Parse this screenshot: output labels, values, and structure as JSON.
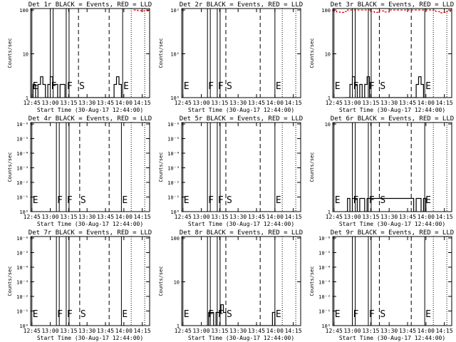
{
  "chart_data": [
    {
      "type": "line",
      "title": "Det 1r BLACK = Events, RED = LLD",
      "xlabel": "Start Time (30-Aug-17 12:44:00)",
      "ylabel": "Counts/sec",
      "x_ticks": [
        "12:45",
        "13:00",
        "13:15",
        "13:30",
        "13:45",
        "14:00",
        "14:15"
      ],
      "y_scale": "log",
      "y_ticks": [
        "1",
        "10",
        "100"
      ],
      "markers": [
        {
          "label": "E",
          "time": "12:45"
        },
        {
          "label": "F",
          "time": "13:00"
        },
        {
          "label": "F",
          "time": "13:13"
        },
        {
          "label": "S",
          "time": "13:23"
        },
        {
          "label": "E",
          "time": "13:59"
        }
      ],
      "series": [
        {
          "color": "#000000",
          "x": [
            "12:44",
            "12:46",
            "12:48",
            "12:50",
            "12:52",
            "12:54",
            "12:56",
            "12:58",
            "13:00",
            "13:02",
            "13:04",
            "13:06",
            "13:08",
            "13:10",
            "13:12",
            "13:14",
            "13:16",
            "13:18",
            "13:20",
            "13:22",
            "13:24",
            "13:26",
            "13:28",
            "13:30",
            "13:32",
            "13:34",
            "13:36",
            "13:38",
            "13:40",
            "13:42",
            "13:44",
            "13:46",
            "13:48",
            "13:50",
            "13:52",
            "13:54",
            "13:56",
            "13:58",
            "14:00"
          ],
          "y": [
            0,
            2,
            1,
            2,
            3,
            2,
            1,
            2,
            3,
            2,
            2,
            1,
            2,
            2,
            1,
            0,
            0,
            0,
            0,
            0,
            0,
            0,
            0,
            0,
            0,
            0,
            0,
            0,
            0,
            0,
            0,
            0,
            0,
            0,
            2,
            3,
            2,
            1,
            0
          ]
        },
        {
          "color": "#dd0000",
          "x": [
            "14:08",
            "14:11",
            "14:14",
            "14:17",
            "14:20"
          ],
          "y": [
            100,
            97,
            95,
            96,
            100
          ]
        }
      ]
    },
    {
      "type": "line",
      "title": "Det 2r BLACK = Events, RED = LLD",
      "xlabel": "Start Time (30-Aug-17 12:44:00)",
      "ylabel": "Counts/sec",
      "x_ticks": [
        "12:45",
        "13:00",
        "13:15",
        "13:30",
        "13:45",
        "14:00",
        "14:15"
      ],
      "y_scale": "log",
      "y_ticks": [
        "10⁰",
        "10¹",
        "10²"
      ],
      "markers": [
        {
          "label": "E",
          "time": "12:45"
        },
        {
          "label": "F",
          "time": "13:05"
        },
        {
          "label": "F",
          "time": "13:13"
        },
        {
          "label": "S",
          "time": "13:20"
        },
        {
          "label": "E",
          "time": "14:00"
        }
      ],
      "series": []
    },
    {
      "type": "line",
      "title": "Det 3r BLACK = Events, RED = LLD",
      "xlabel": "Start Time (30-Aug-17 12:44:00)",
      "ylabel": "Counts/sec",
      "x_ticks": [
        "12:45",
        "13:00",
        "13:15",
        "13:30",
        "13:45",
        "14:00",
        "14:15"
      ],
      "y_scale": "log",
      "y_ticks": [
        "1",
        "10",
        "100"
      ],
      "markers": [
        {
          "label": "E",
          "time": "12:45"
        },
        {
          "label": "F",
          "time": "13:00"
        },
        {
          "label": "F",
          "time": "13:13"
        },
        {
          "label": "S",
          "time": "13:22"
        },
        {
          "label": "E",
          "time": "13:59"
        }
      ],
      "series": [
        {
          "color": "#000000",
          "x": [
            "12:54",
            "12:56",
            "12:58",
            "13:00",
            "13:02",
            "13:04",
            "13:06",
            "13:08",
            "13:10",
            "13:12",
            "13:14",
            "13:50",
            "13:52",
            "13:54",
            "13:56",
            "13:58",
            "14:00"
          ],
          "y": [
            0,
            1,
            2,
            3,
            2,
            1,
            2,
            1,
            2,
            3,
            0,
            0,
            2,
            3,
            2,
            1,
            0
          ]
        },
        {
          "color": "#dd0000",
          "x": [
            "12:44",
            "12:47",
            "12:50",
            "12:53",
            "12:56",
            "13:12",
            "13:15",
            "13:18",
            "13:22",
            "13:26",
            "13:30",
            "14:05",
            "14:08",
            "14:11",
            "14:14",
            "14:17",
            "14:20"
          ],
          "y": [
            95,
            90,
            88,
            92,
            100,
            100,
            92,
            88,
            95,
            90,
            100,
            100,
            92,
            86,
            88,
            93,
            100
          ]
        }
      ]
    },
    {
      "type": "line",
      "title": "Det 4r BLACK = Events, RED = LLD",
      "xlabel": "Start Time (30-Aug-17 12:44:00)",
      "ylabel": "Counts/sec",
      "x_ticks": [
        "12:45",
        "13:00",
        "13:15",
        "13:30",
        "13:45",
        "14:00",
        "14:15"
      ],
      "y_scale": "log",
      "y_ticks": [
        "10⁰",
        "10⁻¹",
        "10⁻²",
        "10⁻³",
        "10⁻⁴",
        "10⁻⁵",
        "10⁻⁶"
      ],
      "markers": [
        {
          "label": "E",
          "time": "12:45"
        },
        {
          "label": "F",
          "time": "13:05"
        },
        {
          "label": "F",
          "time": "13:13"
        },
        {
          "label": "S",
          "time": "13:24"
        },
        {
          "label": "E",
          "time": "13:58"
        }
      ],
      "series": []
    },
    {
      "type": "line",
      "title": "Det 5r BLACK = Events, RED = LLD",
      "xlabel": "Start Time (30-Aug-17 12:44:00)",
      "ylabel": "Counts/sec",
      "x_ticks": [
        "12:45",
        "13:00",
        "13:15",
        "13:30",
        "13:45",
        "14:00",
        "14:15"
      ],
      "y_scale": "log",
      "y_ticks": [
        "10⁰",
        "10⁻¹",
        "10⁻²",
        "10⁻³",
        "10⁻⁴",
        "10⁻⁵",
        "10⁻⁶"
      ],
      "markers": [
        {
          "label": "E",
          "time": "12:45"
        },
        {
          "label": "F",
          "time": "13:05"
        },
        {
          "label": "F",
          "time": "13:13"
        },
        {
          "label": "S",
          "time": "13:20"
        },
        {
          "label": "E",
          "time": "14:00"
        }
      ],
      "series": []
    },
    {
      "type": "line",
      "title": "Det 6r BLACK = Events, RED = LLD",
      "xlabel": "Start Time (30-Aug-17 12:44:00)",
      "ylabel": "Counts/sec",
      "x_ticks": [
        "12:45",
        "13:00",
        "13:15",
        "13:30",
        "13:45",
        "14:00",
        "14:15"
      ],
      "y_scale": "log",
      "y_ticks": [
        "1",
        "10"
      ],
      "markers": [
        {
          "label": "E",
          "time": "12:45"
        },
        {
          "label": "F",
          "time": "13:00"
        },
        {
          "label": "F",
          "time": "13:13"
        },
        {
          "label": "S",
          "time": "13:22"
        },
        {
          "label": "E",
          "time": "13:59"
        }
      ],
      "series": [
        {
          "color": "#000000",
          "x": [
            "12:54",
            "12:56",
            "12:58",
            "13:00",
            "13:02",
            "13:04",
            "13:06",
            "13:08",
            "13:10",
            "13:12",
            "13:50",
            "13:52",
            "13:54",
            "13:56",
            "13:58",
            "14:00"
          ],
          "y": [
            0,
            2,
            1,
            2,
            2,
            1,
            2,
            2,
            1,
            2,
            0,
            2,
            2,
            1,
            2,
            0
          ]
        }
      ]
    },
    {
      "type": "line",
      "title": "Det 7r BLACK = Events, RED = LLD",
      "xlabel": "Start Time (30-Aug-17 12:44:00)",
      "ylabel": "Counts/sec",
      "x_ticks": [
        "12:45",
        "13:00",
        "13:15",
        "13:30",
        "13:45",
        "14:00",
        "14:15"
      ],
      "y_scale": "log",
      "y_ticks": [
        "10⁰",
        "10⁻¹",
        "10⁻²",
        "10⁻³",
        "10⁻⁴",
        "10⁻⁵",
        "10⁻⁶"
      ],
      "markers": [
        {
          "label": "E",
          "time": "12:45"
        },
        {
          "label": "F",
          "time": "13:05"
        },
        {
          "label": "F",
          "time": "13:13"
        },
        {
          "label": "S",
          "time": "13:24"
        },
        {
          "label": "E",
          "time": "13:58"
        }
      ],
      "series": []
    },
    {
      "type": "line",
      "title": "Det 8r BLACK = Events, RED = LLD",
      "xlabel": "Start Time (30-Aug-17 12:44:00)",
      "ylabel": "Counts/sec",
      "x_ticks": [
        "12:45",
        "13:00",
        "13:15",
        "13:30",
        "13:45",
        "14:00",
        "14:15"
      ],
      "y_scale": "log",
      "y_ticks": [
        "1",
        "10",
        "100"
      ],
      "markers": [
        {
          "label": "E",
          "time": "12:45"
        },
        {
          "label": "F",
          "time": "13:05"
        },
        {
          "label": "F",
          "time": "13:13"
        },
        {
          "label": "S",
          "time": "13:20"
        },
        {
          "label": "E",
          "time": "14:00"
        }
      ],
      "series": [
        {
          "color": "#000000",
          "x": [
            "13:04",
            "13:06",
            "13:08",
            "13:10",
            "13:12",
            "13:14",
            "13:16",
            "13:18",
            "13:20",
            "13:56",
            "13:58",
            "14:00"
          ],
          "y": [
            0,
            2,
            2,
            1,
            2,
            2,
            3,
            2,
            0,
            0,
            2,
            0
          ]
        }
      ]
    },
    {
      "type": "line",
      "title": "Det 9r BLACK = Events, RED = LLD",
      "xlabel": "Start Time (30-Aug-17 12:44:00)",
      "ylabel": "Counts/sec",
      "x_ticks": [
        "12:45",
        "13:00",
        "13:15",
        "13:30",
        "13:45",
        "14:00",
        "14:15"
      ],
      "y_scale": "log",
      "y_ticks": [
        "10⁰",
        "10⁻¹",
        "10⁻²",
        "10⁻³",
        "10⁻⁴",
        "10⁻⁵",
        "10⁻⁶"
      ],
      "markers": [
        {
          "label": "E",
          "time": "12:45"
        },
        {
          "label": "F",
          "time": "13:00"
        },
        {
          "label": "F",
          "time": "13:13"
        },
        {
          "label": "S",
          "time": "13:22"
        },
        {
          "label": "E",
          "time": "13:59"
        }
      ],
      "series": []
    }
  ]
}
